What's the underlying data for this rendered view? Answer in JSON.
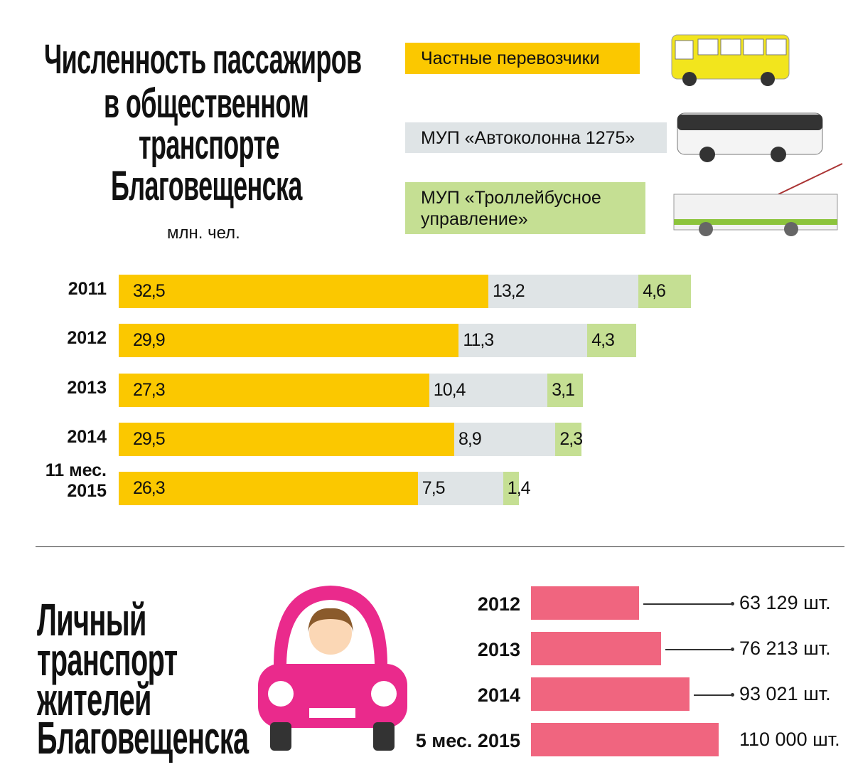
{
  "title_top": [
    "Численность пассажиров",
    "в общественном",
    "транспорте",
    "Благовещенска"
  ],
  "unit": "млн. чел.",
  "legend": [
    {
      "label": "Частные перевозчики",
      "color": "#fbc800",
      "icon": "yellow-bus-icon"
    },
    {
      "label": "МУП «Автоколонна 1275»",
      "color": "#dfe4e6",
      "icon": "white-bus-icon"
    },
    {
      "label": "МУП «Троллейбусное управление»",
      "color": "#c5df93",
      "icon": "trolleybus-icon"
    }
  ],
  "title_bottom": [
    "Личный",
    "транспорт",
    "жителей",
    "Благовещенска"
  ],
  "chart_data": [
    {
      "type": "bar",
      "stacked": true,
      "orientation": "horizontal",
      "title": "Численность пассажиров в общественном транспорте Благовещенска",
      "unit": "млн. чел.",
      "categories": [
        "2011",
        "2012",
        "2013",
        "2014",
        "11 мес. 2015"
      ],
      "category_lines": [
        [
          "2011"
        ],
        [
          "2012"
        ],
        [
          "2013"
        ],
        [
          "2014"
        ],
        [
          "11 мес.",
          "2015"
        ]
      ],
      "series": [
        {
          "name": "Частные перевозчики",
          "color": "#fbc800",
          "values": [
            32.5,
            29.9,
            27.3,
            29.5,
            26.3
          ],
          "labels": [
            "32,5",
            "29,9",
            "27,3",
            "29,5",
            "26,3"
          ]
        },
        {
          "name": "МУП «Автоколонна 1275»",
          "color": "#dfe4e6",
          "values": [
            13.2,
            11.3,
            10.4,
            8.9,
            7.5
          ],
          "labels": [
            "13,2",
            "11,3",
            "10,4",
            "8,9",
            "7,5"
          ]
        },
        {
          "name": "МУП «Троллейбусное управление»",
          "color": "#c5df93",
          "values": [
            4.6,
            4.3,
            3.1,
            2.3,
            1.4
          ],
          "labels": [
            "4,6",
            "4,3",
            "3,1",
            "2,3",
            "1,4"
          ]
        }
      ]
    },
    {
      "type": "bar",
      "orientation": "horizontal",
      "title": "Личный транспорт жителей Благовещенска",
      "color": "#f0657f",
      "categories": [
        "2012",
        "2013",
        "2014",
        "5 мес. 2015"
      ],
      "values": [
        63129,
        76213,
        93021,
        110000
      ],
      "labels": [
        "63 129 шт.",
        "76 213 шт.",
        "93 021 шт.",
        "110 000 шт."
      ]
    }
  ]
}
